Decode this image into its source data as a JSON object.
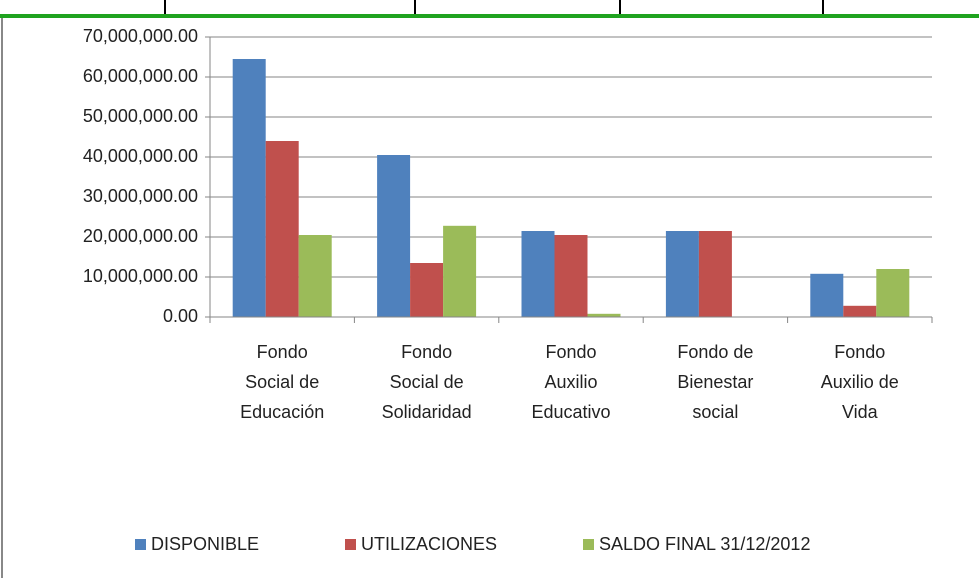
{
  "chart_data": {
    "type": "bar",
    "categories": [
      [
        "Fondo",
        "Social de",
        "Educación"
      ],
      [
        "Fondo",
        "Social de",
        "Solidaridad"
      ],
      [
        "Fondo",
        "Auxilio",
        "Educativo"
      ],
      [
        "Fondo de",
        "Bienestar",
        "social"
      ],
      [
        "Fondo",
        "Auxilio de",
        "Vida"
      ]
    ],
    "series": [
      {
        "name": "DISPONIBLE",
        "color": "#4f81bd",
        "values": [
          64500000,
          40500000,
          21500000,
          21500000,
          10800000
        ]
      },
      {
        "name": "UTILIZACIONES",
        "color": "#c0504d",
        "values": [
          44000000,
          13500000,
          20500000,
          21500000,
          2800000
        ]
      },
      {
        "name": "SALDO FINAL 31/12/2012",
        "color": "#9bbb59",
        "values": [
          20500000,
          22800000,
          800000,
          0,
          12000000
        ]
      }
    ],
    "ylim": [
      0,
      70000000
    ],
    "yticks": [
      {
        "value": 0,
        "label": "0.00"
      },
      {
        "value": 10000000,
        "label": "10,000,000.00"
      },
      {
        "value": 20000000,
        "label": "20,000,000.00"
      },
      {
        "value": 30000000,
        "label": "30,000,000.00"
      },
      {
        "value": 40000000,
        "label": "40,000,000.00"
      },
      {
        "value": 50000000,
        "label": "50,000,000.00"
      },
      {
        "value": 60000000,
        "label": "60,000,000.00"
      },
      {
        "value": 70000000,
        "label": "70,000,000.00"
      }
    ],
    "grid": true,
    "legend": "bottom"
  }
}
